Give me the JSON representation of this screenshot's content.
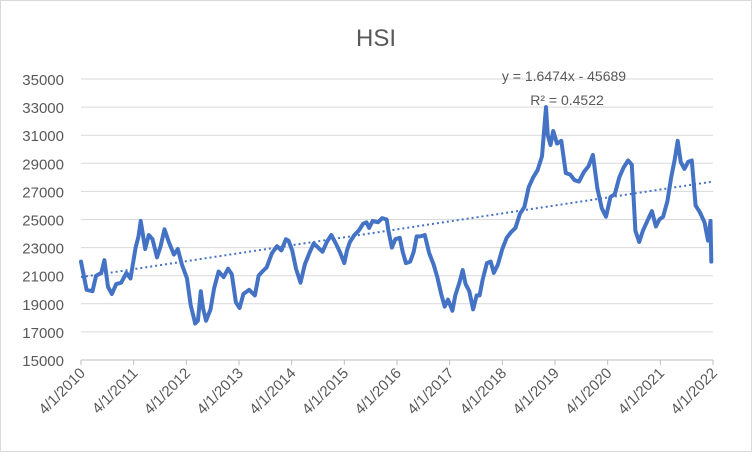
{
  "chart_data": {
    "type": "line",
    "title": "HSI",
    "xlabel": "",
    "ylabel": "",
    "ylim": [
      15000,
      35000
    ],
    "y_ticks": [
      15000,
      17000,
      19000,
      21000,
      23000,
      25000,
      27000,
      29000,
      31000,
      33000,
      35000
    ],
    "y_tick_labels": [
      "15000",
      "17000",
      "19000",
      "21000",
      "23000",
      "25000",
      "27000",
      "29000",
      "31000",
      "33000",
      "35000"
    ],
    "x_tick_labels": [
      "4/1/2010",
      "4/1/2011",
      "4/1/2012",
      "4/1/2013",
      "4/1/2014",
      "4/1/2015",
      "4/1/2016",
      "4/1/2017",
      "4/1/2018",
      "4/1/2019",
      "4/1/2020",
      "4/1/2021",
      "4/1/2022"
    ],
    "xlim": [
      "2010-04-01",
      "2022-04-01"
    ],
    "grid": "horizontal",
    "legend": "none",
    "series": [
      {
        "color": "#4472c4",
        "points": [
          [
            "2010-04-01",
            22000
          ],
          [
            "2010-05-10",
            20000
          ],
          [
            "2010-06-20",
            19900
          ],
          [
            "2010-07-15",
            21000
          ],
          [
            "2010-08-20",
            21200
          ],
          [
            "2010-09-10",
            22100
          ],
          [
            "2010-10-05",
            20200
          ],
          [
            "2010-11-01",
            19700
          ],
          [
            "2010-12-01",
            20400
          ],
          [
            "2011-01-05",
            20500
          ],
          [
            "2011-02-10",
            21200
          ],
          [
            "2011-03-10",
            20800
          ],
          [
            "2011-04-15",
            23000
          ],
          [
            "2011-05-05",
            23800
          ],
          [
            "2011-05-20",
            24900
          ],
          [
            "2011-06-20",
            22900
          ],
          [
            "2011-07-15",
            23900
          ],
          [
            "2011-08-10",
            23600
          ],
          [
            "2011-09-10",
            22300
          ],
          [
            "2011-10-05",
            23100
          ],
          [
            "2011-11-01",
            24300
          ],
          [
            "2011-12-01",
            23400
          ],
          [
            "2012-01-05",
            22500
          ],
          [
            "2012-02-01",
            22900
          ],
          [
            "2012-03-01",
            21800
          ],
          [
            "2012-04-05",
            20800
          ],
          [
            "2012-05-01",
            18900
          ],
          [
            "2012-06-01",
            17600
          ],
          [
            "2012-06-20",
            17800
          ],
          [
            "2012-07-10",
            19900
          ],
          [
            "2012-07-25",
            18700
          ],
          [
            "2012-08-15",
            17800
          ],
          [
            "2012-09-15",
            18600
          ],
          [
            "2012-10-10",
            20100
          ],
          [
            "2012-11-10",
            21300
          ],
          [
            "2012-12-15",
            20900
          ],
          [
            "2013-01-15",
            21500
          ],
          [
            "2013-02-10",
            21100
          ],
          [
            "2013-03-10",
            19100
          ],
          [
            "2013-04-05",
            18700
          ],
          [
            "2013-05-01",
            19700
          ],
          [
            "2013-06-10",
            20000
          ],
          [
            "2013-07-20",
            19600
          ],
          [
            "2013-08-15",
            21000
          ],
          [
            "2013-09-10",
            21300
          ],
          [
            "2013-10-10",
            21600
          ],
          [
            "2013-11-15",
            22600
          ],
          [
            "2013-12-20",
            23100
          ],
          [
            "2014-01-20",
            22800
          ],
          [
            "2014-02-20",
            23600
          ],
          [
            "2014-03-10",
            23500
          ],
          [
            "2014-04-05",
            22800
          ],
          [
            "2014-05-01",
            21500
          ],
          [
            "2014-06-01",
            20500
          ],
          [
            "2014-07-01",
            21800
          ],
          [
            "2014-08-01",
            22600
          ],
          [
            "2014-09-01",
            23300
          ],
          [
            "2014-10-01",
            23000
          ],
          [
            "2014-11-01",
            22700
          ],
          [
            "2014-12-01",
            23400
          ],
          [
            "2015-01-01",
            23900
          ],
          [
            "2015-02-01",
            23300
          ],
          [
            "2015-03-01",
            22700
          ],
          [
            "2015-04-01",
            21900
          ],
          [
            "2015-04-20",
            22800
          ],
          [
            "2015-05-10",
            23400
          ],
          [
            "2015-06-10",
            23900
          ],
          [
            "2015-07-10",
            24200
          ],
          [
            "2015-08-10",
            24700
          ],
          [
            "2015-09-01",
            24800
          ],
          [
            "2015-09-20",
            24400
          ],
          [
            "2015-10-15",
            24900
          ],
          [
            "2015-11-20",
            24800
          ],
          [
            "2015-12-20",
            25100
          ],
          [
            "2016-01-20",
            25000
          ],
          [
            "2016-02-01",
            24200
          ],
          [
            "2016-02-25",
            23000
          ],
          [
            "2016-03-20",
            23600
          ],
          [
            "2016-04-20",
            23700
          ],
          [
            "2016-05-10",
            22700
          ],
          [
            "2016-06-01",
            21900
          ],
          [
            "2016-07-01",
            22000
          ],
          [
            "2016-07-25",
            22700
          ],
          [
            "2016-08-15",
            23800
          ],
          [
            "2016-09-10",
            23800
          ],
          [
            "2016-10-10",
            23900
          ],
          [
            "2016-11-10",
            22600
          ],
          [
            "2016-12-10",
            21800
          ],
          [
            "2017-01-05",
            20900
          ],
          [
            "2017-02-01",
            19700
          ],
          [
            "2017-02-25",
            18800
          ],
          [
            "2017-03-20",
            19300
          ],
          [
            "2017-04-20",
            18500
          ],
          [
            "2017-05-10",
            19600
          ],
          [
            "2017-06-10",
            20600
          ],
          [
            "2017-06-30",
            21400
          ],
          [
            "2017-07-20",
            20400
          ],
          [
            "2017-08-15",
            19900
          ],
          [
            "2017-09-10",
            18600
          ],
          [
            "2017-10-05",
            19600
          ],
          [
            "2017-10-25",
            19600
          ],
          [
            "2017-11-15",
            20700
          ],
          [
            "2017-12-15",
            21900
          ],
          [
            "2018-01-10",
            22000
          ],
          [
            "2018-02-01",
            21200
          ],
          [
            "2018-03-01",
            21800
          ],
          [
            "2018-04-01",
            22900
          ],
          [
            "2018-05-01",
            23700
          ],
          [
            "2018-06-01",
            24100
          ],
          [
            "2018-07-01",
            24400
          ],
          [
            "2018-08-01",
            25400
          ],
          [
            "2018-09-01",
            25900
          ],
          [
            "2018-10-01",
            27300
          ],
          [
            "2018-11-01",
            28000
          ],
          [
            "2018-12-01",
            28500
          ],
          [
            "2019-01-01",
            29500
          ],
          [
            "2019-01-29",
            33000
          ],
          [
            "2019-02-10",
            31000
          ],
          [
            "2019-03-01",
            30300
          ],
          [
            "2019-03-20",
            31300
          ],
          [
            "2019-04-15",
            30400
          ],
          [
            "2019-05-15",
            30600
          ],
          [
            "2019-06-15",
            28300
          ],
          [
            "2019-07-15",
            28200
          ],
          [
            "2019-08-15",
            27800
          ],
          [
            "2019-09-15",
            27700
          ],
          [
            "2019-10-20",
            28400
          ],
          [
            "2019-11-20",
            28800
          ],
          [
            "2019-12-20",
            29600
          ],
          [
            "2020-01-20",
            27200
          ],
          [
            "2020-02-20",
            25800
          ],
          [
            "2020-03-20",
            25200
          ],
          [
            "2020-04-20",
            26600
          ],
          [
            "2020-05-20",
            26800
          ],
          [
            "2020-06-20",
            28000
          ],
          [
            "2020-07-20",
            28700
          ],
          [
            "2020-08-20",
            29200
          ],
          [
            "2020-09-15",
            28900
          ],
          [
            "2020-10-10",
            24200
          ],
          [
            "2020-11-05",
            23400
          ],
          [
            "2020-12-01",
            24200
          ],
          [
            "2021-01-05",
            25000
          ],
          [
            "2021-02-01",
            25600
          ],
          [
            "2021-03-01",
            24500
          ],
          [
            "2021-03-25",
            25000
          ],
          [
            "2021-04-20",
            25200
          ],
          [
            "2021-05-20",
            26300
          ],
          [
            "2021-06-15",
            28000
          ],
          [
            "2021-07-10",
            29300
          ],
          [
            "2021-07-30",
            30600
          ],
          [
            "2021-08-20",
            29100
          ],
          [
            "2021-09-15",
            28600
          ],
          [
            "2021-10-10",
            29100
          ],
          [
            "2021-11-05",
            29200
          ],
          [
            "2021-12-01",
            26000
          ],
          [
            "2022-01-01",
            25500
          ],
          [
            "2022-02-01",
            24800
          ],
          [
            "2022-02-25",
            23500
          ],
          [
            "2022-03-15",
            24900
          ],
          [
            "2022-03-20",
            22000
          ]
        ]
      }
    ],
    "trendline": {
      "type": "linear",
      "style": "dotted",
      "color": "#4472c4",
      "start": [
        "2010-04-01",
        20900
      ],
      "end": [
        "2022-04-01",
        27700
      ]
    },
    "annotations": [
      "y = 1.6474x - 45689",
      "R² = 0.4522"
    ]
  }
}
